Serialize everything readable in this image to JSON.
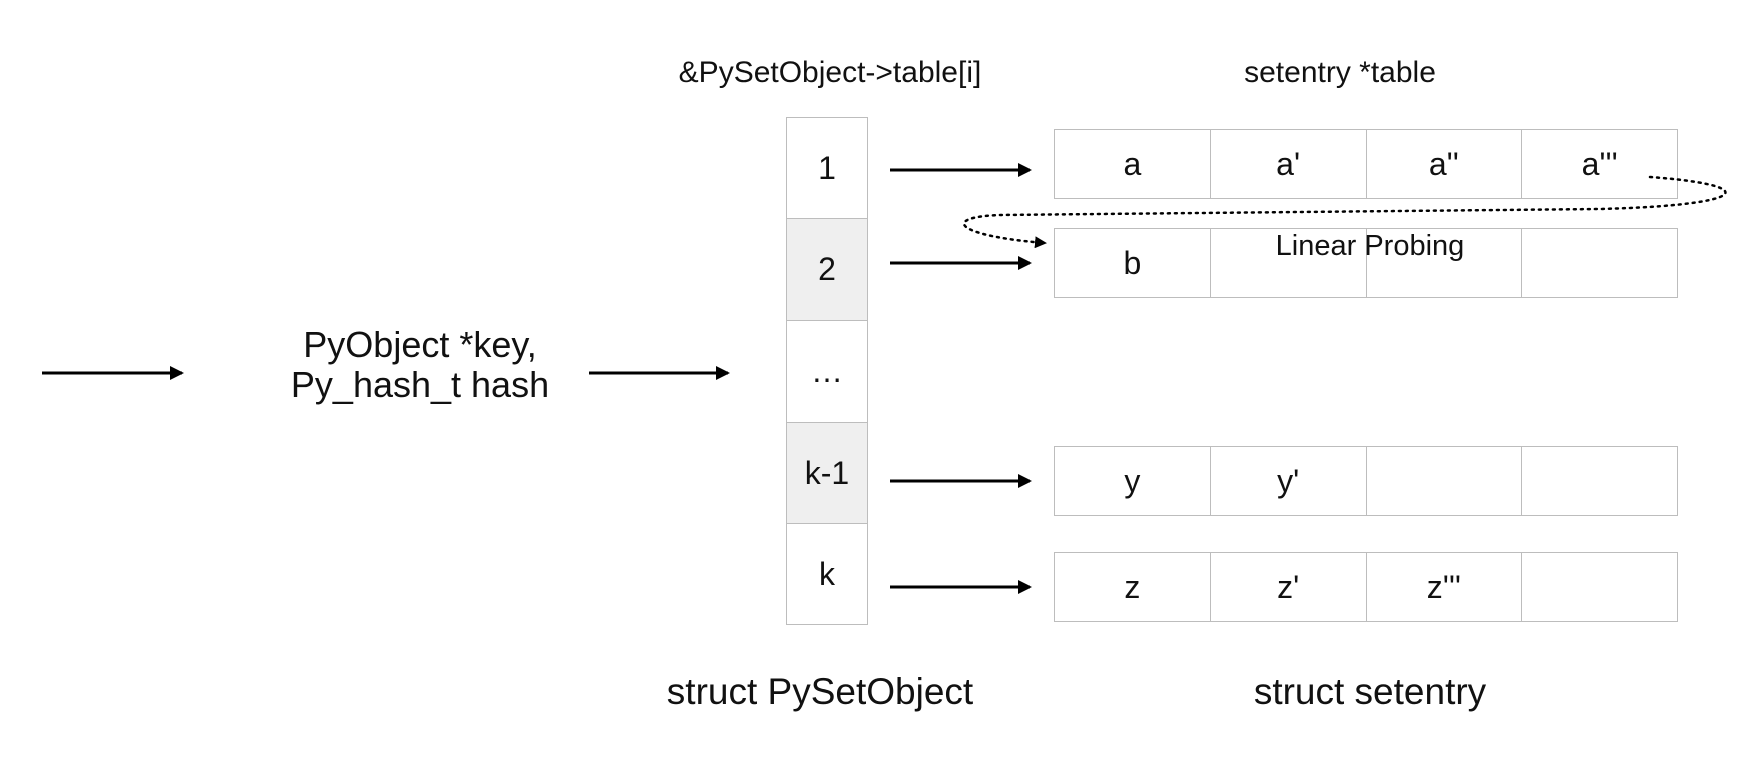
{
  "titles": {
    "index_table": "&PySetObject->table[i]",
    "entry_table": "setentry *table",
    "index_struct": "struct PySetObject",
    "entry_struct": "struct setentry"
  },
  "key": {
    "line1": "PyObject *key,",
    "line2": "Py_hash_t hash"
  },
  "index_cells": [
    {
      "label": "1",
      "shaded": false
    },
    {
      "label": "2",
      "shaded": true
    },
    {
      "label": "…",
      "shaded": false
    },
    {
      "label": "k-1",
      "shaded": true
    },
    {
      "label": "k",
      "shaded": false
    }
  ],
  "entry_rows": [
    {
      "cells": [
        "a",
        "a'",
        "a''",
        "a'''"
      ]
    },
    {
      "cells": [
        "b",
        "",
        "",
        ""
      ]
    },
    {
      "cells": [
        "y",
        "y'",
        "",
        ""
      ]
    },
    {
      "cells": [
        "z",
        "z'",
        "z'''",
        ""
      ]
    }
  ],
  "probe_label": "Linear Probing"
}
